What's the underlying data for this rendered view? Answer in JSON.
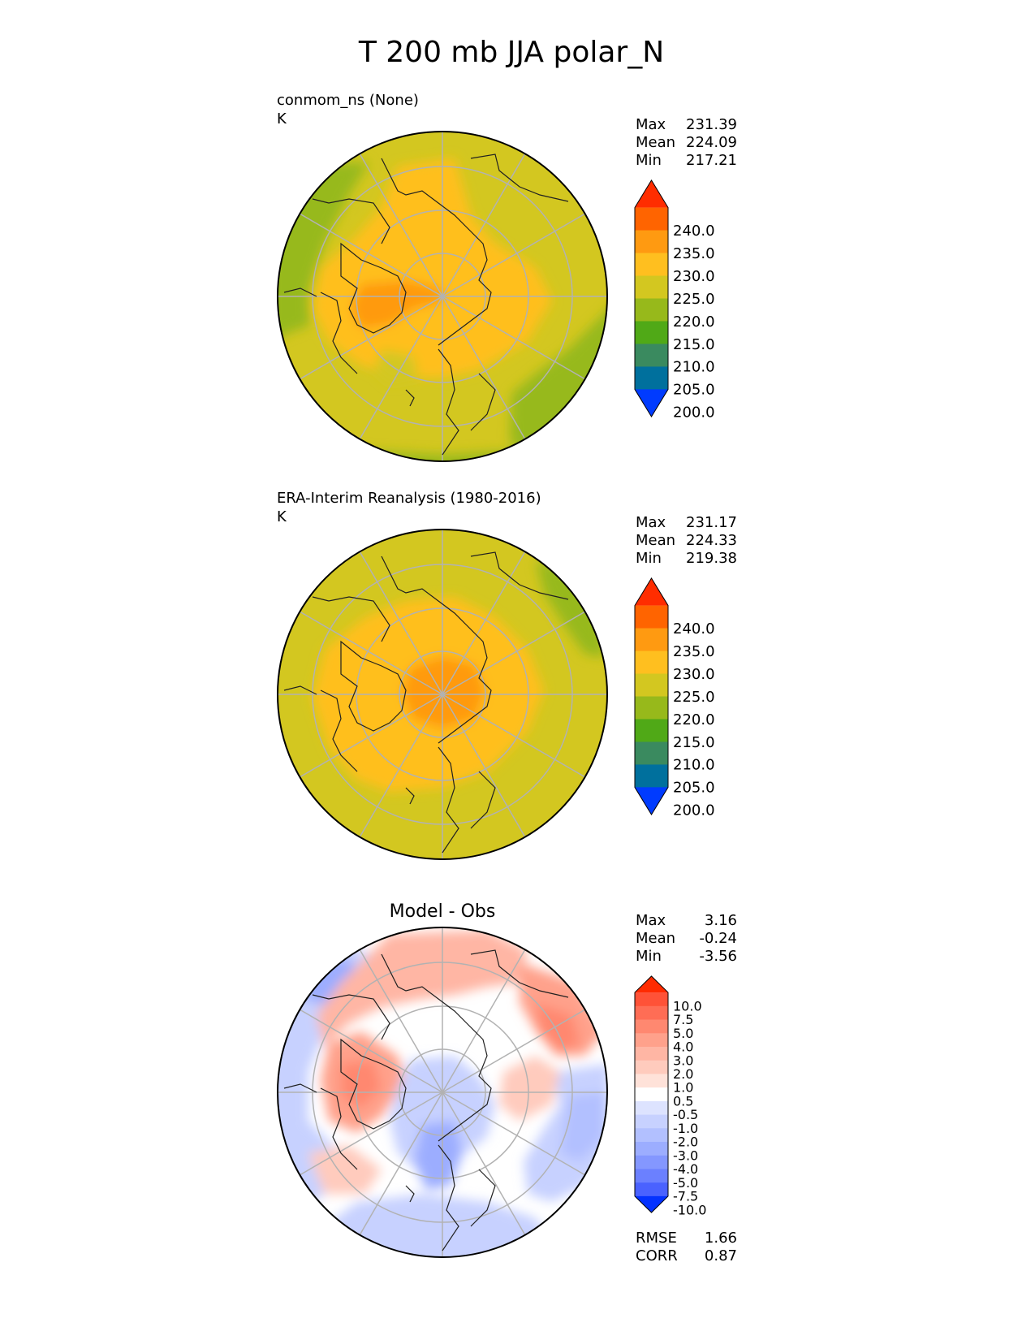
{
  "figure": {
    "title": "T 200 mb JJA polar_N"
  },
  "panels": [
    {
      "id": "model",
      "title": "",
      "left_label": "conmom_ns (None)",
      "units": "K",
      "stats": [
        {
          "label": "Max",
          "value": "231.39"
        },
        {
          "label": "Mean",
          "value": "224.09"
        },
        {
          "label": "Min",
          "value": "217.21"
        }
      ],
      "footer_stats": []
    },
    {
      "id": "obs",
      "title": "",
      "left_label": "ERA-Interim Reanalysis (1980-2016)",
      "units": "K",
      "stats": [
        {
          "label": "Max",
          "value": "231.17"
        },
        {
          "label": "Mean",
          "value": "224.33"
        },
        {
          "label": "Min",
          "value": "219.38"
        }
      ],
      "footer_stats": []
    },
    {
      "id": "diff",
      "title": "Model - Obs",
      "left_label": "",
      "units": "",
      "stats": [
        {
          "label": "Max",
          "value": "3.16"
        },
        {
          "label": "Mean",
          "value": "-0.24"
        },
        {
          "label": "Min",
          "value": "-3.56"
        }
      ],
      "footer_stats": [
        {
          "label": "RMSE",
          "value": "1.66"
        },
        {
          "label": "CORR",
          "value": "0.87"
        }
      ]
    }
  ],
  "chart_data": [
    {
      "type": "heatmap",
      "projection": "north polar stereographic",
      "title": "",
      "label": "conmom_ns (None)",
      "units": "K",
      "colorbar": {
        "ticks": [
          "240.0",
          "235.0",
          "230.0",
          "225.0",
          "220.0",
          "215.0",
          "210.0",
          "205.0",
          "200.0"
        ],
        "colors": [
          "#ff2d00",
          "#ff6400",
          "#ff9a11",
          "#ffbf1f",
          "#d3c720",
          "#97b91b",
          "#50a917",
          "#3a8a5f",
          "#00709d",
          "#003bff"
        ],
        "extend": "both"
      },
      "stats": {
        "Max": 231.39,
        "Mean": 224.09,
        "Min": 217.21
      }
    },
    {
      "type": "heatmap",
      "projection": "north polar stereographic",
      "title": "",
      "label": "ERA-Interim Reanalysis (1980-2016)",
      "units": "K",
      "colorbar": {
        "ticks": [
          "240.0",
          "235.0",
          "230.0",
          "225.0",
          "220.0",
          "215.0",
          "210.0",
          "205.0",
          "200.0"
        ],
        "colors": [
          "#ff2d00",
          "#ff6400",
          "#ff9a11",
          "#ffbf1f",
          "#d3c720",
          "#97b91b",
          "#50a917",
          "#3a8a5f",
          "#00709d",
          "#003bff"
        ],
        "extend": "both"
      },
      "stats": {
        "Max": 231.17,
        "Mean": 224.33,
        "Min": 219.38
      }
    },
    {
      "type": "heatmap",
      "projection": "north polar stereographic",
      "title": "Model - Obs",
      "label": "",
      "units": "",
      "colorbar": {
        "ticks": [
          "10.0",
          "7.5",
          "5.0",
          "4.0",
          "3.0",
          "2.0",
          "1.0",
          "0.5",
          "-0.5",
          "-1.0",
          "-2.0",
          "-3.0",
          "-4.0",
          "-5.0",
          "-7.5",
          "-10.0"
        ],
        "colors": [
          "#ff2b00",
          "#ff5237",
          "#ff6d55",
          "#ff8870",
          "#ffa18b",
          "#ffb6a4",
          "#ffcbbd",
          "#ffe2d9",
          "#ffffff",
          "#dde3ff",
          "#c7d1ff",
          "#b2c0ff",
          "#9cadff",
          "#8497ff",
          "#6b80ff",
          "#4a62ff",
          "#0432ff"
        ],
        "extend": "both"
      },
      "stats": {
        "Max": 3.16,
        "Mean": -0.24,
        "Min": -3.56,
        "RMSE": 1.66,
        "CORR": 0.87
      }
    }
  ]
}
